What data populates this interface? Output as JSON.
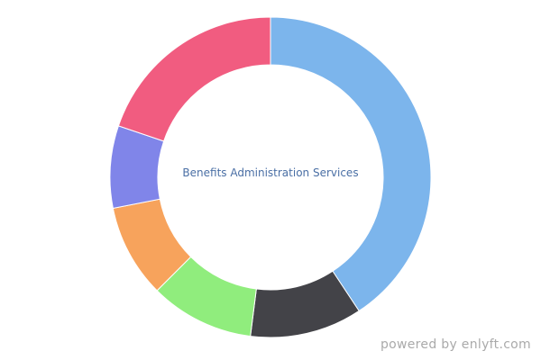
{
  "chart_data": {
    "type": "pie",
    "variant": "donut",
    "center_label": "Benefits Administration Services",
    "unit": "percent",
    "values": [
      40.7,
      11.3,
      10.5,
      9.4,
      8.3,
      19.8
    ],
    "colors": [
      "#7cb5ec",
      "#434348",
      "#90ed7d",
      "#f7a35c",
      "#8085e9",
      "#f15c80"
    ],
    "start_angle": "top, clockwise",
    "legend": "none"
  },
  "footer": {
    "credit": "powered by enlyft.com"
  }
}
